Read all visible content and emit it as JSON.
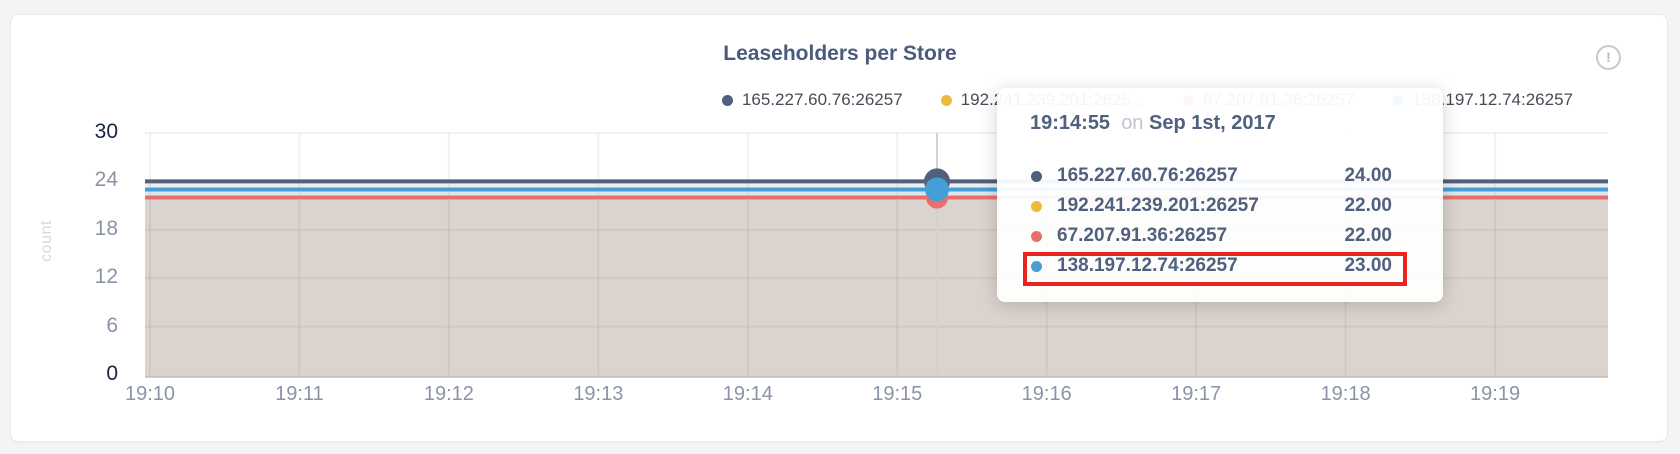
{
  "card": {
    "title": "Leaseholders per Store",
    "info_icon": "!"
  },
  "axes": {
    "y_label": "count",
    "y_ticks": [
      "30",
      "24",
      "18",
      "12",
      "6",
      "0"
    ],
    "x_ticks": [
      "19:10",
      "19:11",
      "19:12",
      "19:13",
      "19:14",
      "19:15",
      "19:16",
      "19:17",
      "19:18",
      "19:19"
    ]
  },
  "legend": {
    "items": [
      {
        "label": "165.227.60.76:26257",
        "color": "#51607e"
      },
      {
        "label": "192.241.239.201:2625...",
        "color": "#eeba3a"
      },
      {
        "label": "67.207.91.36:26257",
        "color": "#e96f6f"
      },
      {
        "label": "138.197.12.74:26257",
        "color": "#459fd6"
      }
    ]
  },
  "tooltip": {
    "time": "19:14:55",
    "conjunction": "on",
    "date": "Sep 1st, 2017",
    "rows": [
      {
        "label": "165.227.60.76:26257",
        "value": "24.00",
        "color": "#51607e",
        "highlighted": false
      },
      {
        "label": "192.241.239.201:26257",
        "value": "22.00",
        "color": "#eeba3a",
        "highlighted": false
      },
      {
        "label": "67.207.91.36:26257",
        "value": "22.00",
        "color": "#e96f6f",
        "highlighted": false
      },
      {
        "label": "138.197.12.74:26257",
        "value": "23.00",
        "color": "#459fd6",
        "highlighted": true
      }
    ],
    "highlight_color": "#e8241e"
  },
  "chart_data": {
    "type": "area",
    "title": "Leaseholders per Store",
    "xlabel": "",
    "ylabel": "count",
    "ylim": [
      0,
      30
    ],
    "y_gridlines": [
      6,
      12,
      18,
      24,
      30
    ],
    "grid": true,
    "legend_position": "top-right",
    "x": [
      "19:10",
      "19:11",
      "19:12",
      "19:13",
      "19:14",
      "19:15",
      "19:16",
      "19:17",
      "19:18",
      "19:19"
    ],
    "series": [
      {
        "name": "165.227.60.76:26257",
        "color": "#51607e",
        "values": [
          24,
          24,
          24,
          24,
          24,
          24,
          24,
          24,
          24,
          24
        ]
      },
      {
        "name": "192.241.239.201:26257",
        "color": "#eeba3a",
        "values": [
          22,
          22,
          22,
          22,
          22,
          22,
          22,
          22,
          22,
          22
        ]
      },
      {
        "name": "67.207.91.36:26257",
        "color": "#e96f6f",
        "values": [
          22,
          22,
          22,
          22,
          22,
          22,
          22,
          22,
          22,
          22
        ]
      },
      {
        "name": "138.197.12.74:26257",
        "color": "#459fd6",
        "values": [
          23,
          23,
          23,
          23,
          23,
          23,
          23,
          23,
          23,
          23
        ]
      }
    ],
    "hover_point": {
      "time": "19:14:55",
      "date": "Sep 1st, 2017",
      "values": {
        "165.227.60.76:26257": 24,
        "192.241.239.201:26257": 22,
        "67.207.91.36:26257": 22,
        "138.197.12.74:26257": 23
      }
    }
  }
}
